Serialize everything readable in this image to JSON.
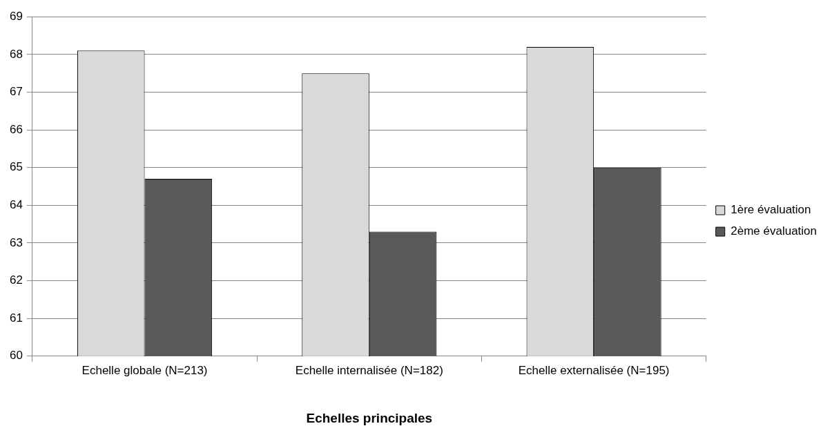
{
  "chart_data": {
    "type": "bar",
    "xlabel": "Echelles principales",
    "categories": [
      "Echelle globale (N=213)",
      "Echelle internalisée (N=182)",
      "Echelle externalisée (N=195)"
    ],
    "series": [
      {
        "name": "1ère évaluation",
        "color": "#d9d9d9",
        "values": [
          68.1,
          67.5,
          68.2
        ]
      },
      {
        "name": "2ème évaluation",
        "color": "#595959",
        "values": [
          64.7,
          63.3,
          65.0
        ]
      }
    ],
    "ylim": [
      60,
      69
    ],
    "yticks": [
      60,
      61,
      62,
      63,
      64,
      65,
      66,
      67,
      68,
      69
    ],
    "grid": "y",
    "legend": "right"
  }
}
